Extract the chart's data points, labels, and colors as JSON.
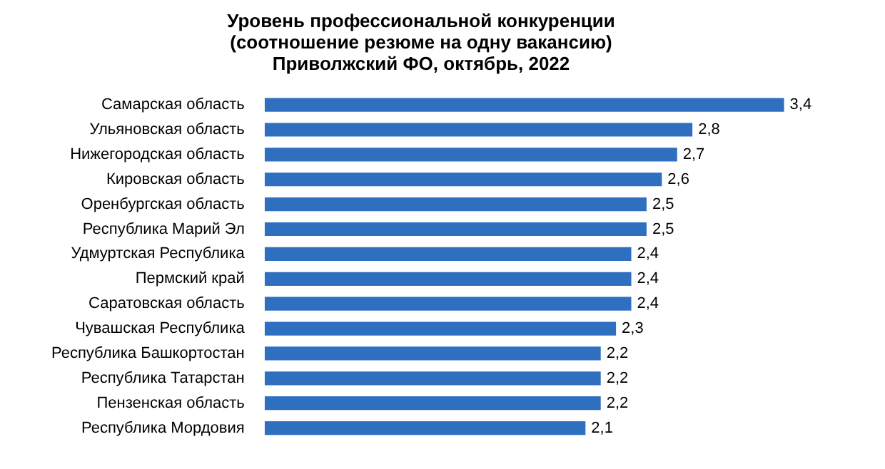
{
  "chart_data": {
    "type": "bar",
    "orientation": "horizontal",
    "title": "Уровень профессиональной конкуренции\n(соотношение резюме на одну вакансию)\nПриволжский ФО, октябрь, 2022",
    "categories": [
      "Самарская область",
      "Ульяновская область",
      "Нижегородская область",
      "Кировская область",
      "Оренбургская область",
      "Республика Марий Эл",
      "Удмуртская Республика",
      "Пермский край",
      "Саратовская область",
      "Чувашская Республика",
      "Республика Башкортостан",
      "Республика Татарстан",
      "Пензенская область",
      "Республика Мордовия"
    ],
    "values": [
      3.4,
      2.8,
      2.7,
      2.6,
      2.5,
      2.5,
      2.4,
      2.4,
      2.4,
      2.3,
      2.2,
      2.2,
      2.2,
      2.1
    ],
    "value_labels": [
      "3,4",
      "2,8",
      "2,7",
      "2,6",
      "2,5",
      "2,5",
      "2,4",
      "2,4",
      "2,4",
      "2,3",
      "2,2",
      "2,2",
      "2,2",
      "2,1"
    ],
    "color": "#2f6fc0",
    "legend": false
  }
}
